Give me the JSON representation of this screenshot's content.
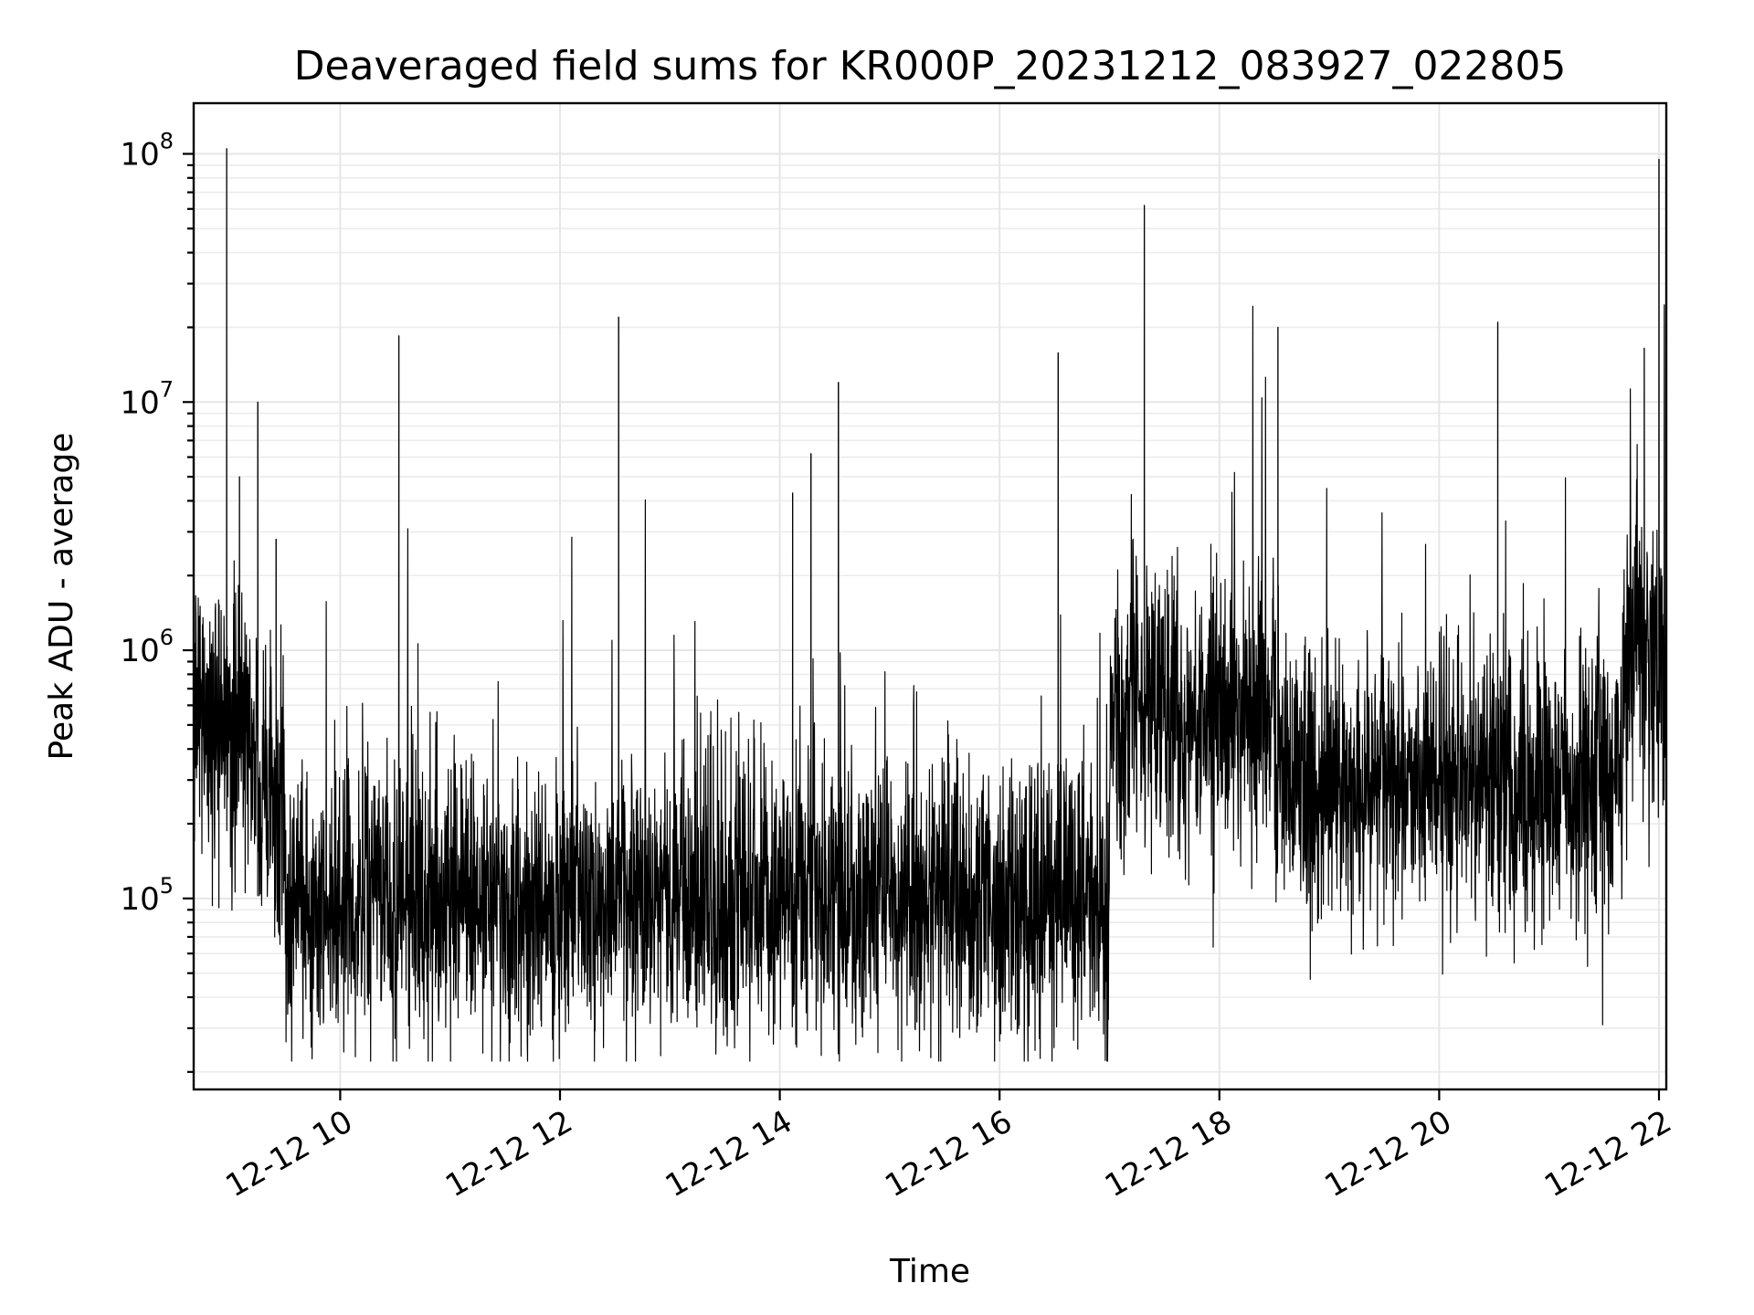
{
  "chart_data": {
    "type": "line",
    "title": "Deaveraged field sums for KR000P_20231212_083927_022805",
    "xlabel": "Time",
    "ylabel": "Peak ADU - average",
    "yscale": "log",
    "ylim": [
      17000,
      160000000
    ],
    "xlim": [
      "2023-12-12 08:40",
      "2023-12-12 22:04"
    ],
    "grid": true,
    "legend": "none",
    "x_ticks": [
      {
        "t": "2023-12-12 10:00",
        "label": "12-12 10"
      },
      {
        "t": "2023-12-12 12:00",
        "label": "12-12 12"
      },
      {
        "t": "2023-12-12 14:00",
        "label": "12-12 14"
      },
      {
        "t": "2023-12-12 16:00",
        "label": "12-12 16"
      },
      {
        "t": "2023-12-12 18:00",
        "label": "12-12 18"
      },
      {
        "t": "2023-12-12 20:00",
        "label": "12-12 20"
      },
      {
        "t": "2023-12-12 22:00",
        "label": "12-12 22"
      }
    ],
    "y_ticks": [
      {
        "value": 100000,
        "base": "10",
        "exp": "5"
      },
      {
        "value": 1000000,
        "base": "10",
        "exp": "6"
      },
      {
        "value": 10000000,
        "base": "10",
        "exp": "7"
      },
      {
        "value": 100000000,
        "base": "10",
        "exp": "8"
      }
    ],
    "line_color": "#000000",
    "baseline_segments": [
      {
        "start": "2023-12-12 08:40",
        "end": "2023-12-12 09:15",
        "median": 450000
      },
      {
        "start": "2023-12-12 09:15",
        "end": "2023-12-12 09:30",
        "median": 250000
      },
      {
        "start": "2023-12-12 09:30",
        "end": "2023-12-12 17:00",
        "median": 100000
      },
      {
        "start": "2023-12-12 17:00",
        "end": "2023-12-12 18:30",
        "median": 550000
      },
      {
        "start": "2023-12-12 18:30",
        "end": "2023-12-12 21:40",
        "median": 300000
      },
      {
        "start": "2023-12-12 21:40",
        "end": "2023-12-12 22:04",
        "median": 900000
      }
    ],
    "spikes": [
      {
        "t": "2023-12-12 08:58",
        "value": 105000000
      },
      {
        "t": "2023-12-12 09:05",
        "value": 5000000
      },
      {
        "t": "2023-12-12 09:15",
        "value": 10000000
      },
      {
        "t": "2023-12-12 09:25",
        "value": 2800000
      },
      {
        "t": "2023-12-12 10:32",
        "value": 18500000
      },
      {
        "t": "2023-12-12 12:32",
        "value": 22000000
      },
      {
        "t": "2023-12-12 14:07",
        "value": 4300000
      },
      {
        "t": "2023-12-12 14:17",
        "value": 6200000
      },
      {
        "t": "2023-12-12 14:32",
        "value": 12000000
      },
      {
        "t": "2023-12-12 16:32",
        "value": 15800000
      },
      {
        "t": "2023-12-12 17:19",
        "value": 62000000
      },
      {
        "t": "2023-12-12 18:32",
        "value": 20000000
      },
      {
        "t": "2023-12-12 20:32",
        "value": 21000000
      },
      {
        "t": "2023-12-12 21:52",
        "value": 16500000
      },
      {
        "t": "2023-12-12 22:00",
        "value": 95000000
      }
    ]
  }
}
